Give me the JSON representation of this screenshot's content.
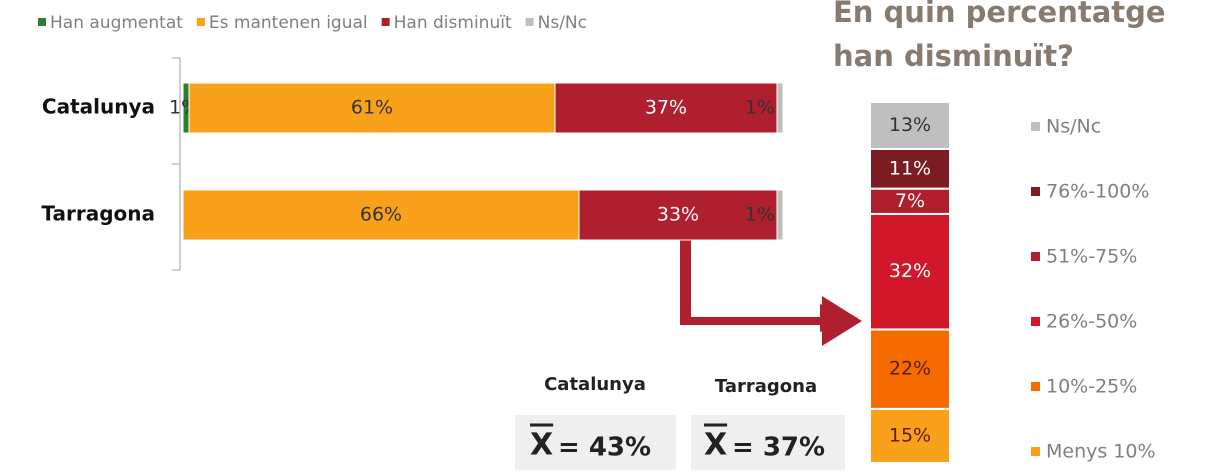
{
  "chart_data": [
    {
      "type": "stacked-hbar",
      "categories": [
        "Catalunya",
        "Tarragona"
      ],
      "xlim": [
        0,
        100
      ],
      "series": [
        {
          "name": "Han augmentat",
          "color": "#2e7d32",
          "label_color": "#333333",
          "values": [
            1,
            null
          ],
          "value_labels": [
            "1%",
            null
          ]
        },
        {
          "name": "Es mantenen igual",
          "color": "#f9a11b",
          "label_color": "#333333",
          "values": [
            61,
            66
          ],
          "value_labels": [
            "61%",
            "66%"
          ]
        },
        {
          "name": "Han disminuït",
          "color": "#b01f2e",
          "label_color": "#ffffff",
          "values": [
            37,
            33
          ],
          "value_labels": [
            "37%",
            "33%"
          ]
        },
        {
          "name": "Ns/Nc",
          "color": "#bfbfbf",
          "label_color": "#333333",
          "values": [
            1,
            1
          ],
          "value_labels": [
            "1%",
            "1%"
          ]
        }
      ]
    },
    {
      "type": "stacked-column",
      "title_lines": [
        "En quin percentatge",
        "han disminuït?"
      ],
      "ylim": [
        0,
        100
      ],
      "series": [
        {
          "name": "Menys 10%",
          "color": "#f9a11b",
          "label_color": "#5a1a14",
          "values": [
            15
          ],
          "value_labels": [
            "15%"
          ]
        },
        {
          "name": "10%-25%",
          "color": "#f56b00",
          "label_color": "#5a1a14",
          "values": [
            22
          ],
          "value_labels": [
            "22%"
          ]
        },
        {
          "name": "26%-50%",
          "color": "#d0182a",
          "label_color": "#ffffff",
          "values": [
            32
          ],
          "value_labels": [
            "32%"
          ]
        },
        {
          "name": "51%-75%",
          "color": "#b01f2e",
          "label_color": "#ffffff",
          "values": [
            7
          ],
          "value_labels": [
            "7%"
          ]
        },
        {
          "name": "76%-100%",
          "color": "#7b1c22",
          "label_color": "#ffffff",
          "values": [
            11
          ],
          "value_labels": [
            "11%"
          ]
        },
        {
          "name": "Ns/Nc",
          "color": "#bfbfbf",
          "label_color": "#333333",
          "values": [
            13
          ],
          "value_labels": [
            "13%"
          ]
        }
      ]
    }
  ],
  "means": [
    {
      "name": "Catalunya",
      "label": "= 43%"
    },
    {
      "name": "Tarragona",
      "label": "= 37%"
    }
  ]
}
